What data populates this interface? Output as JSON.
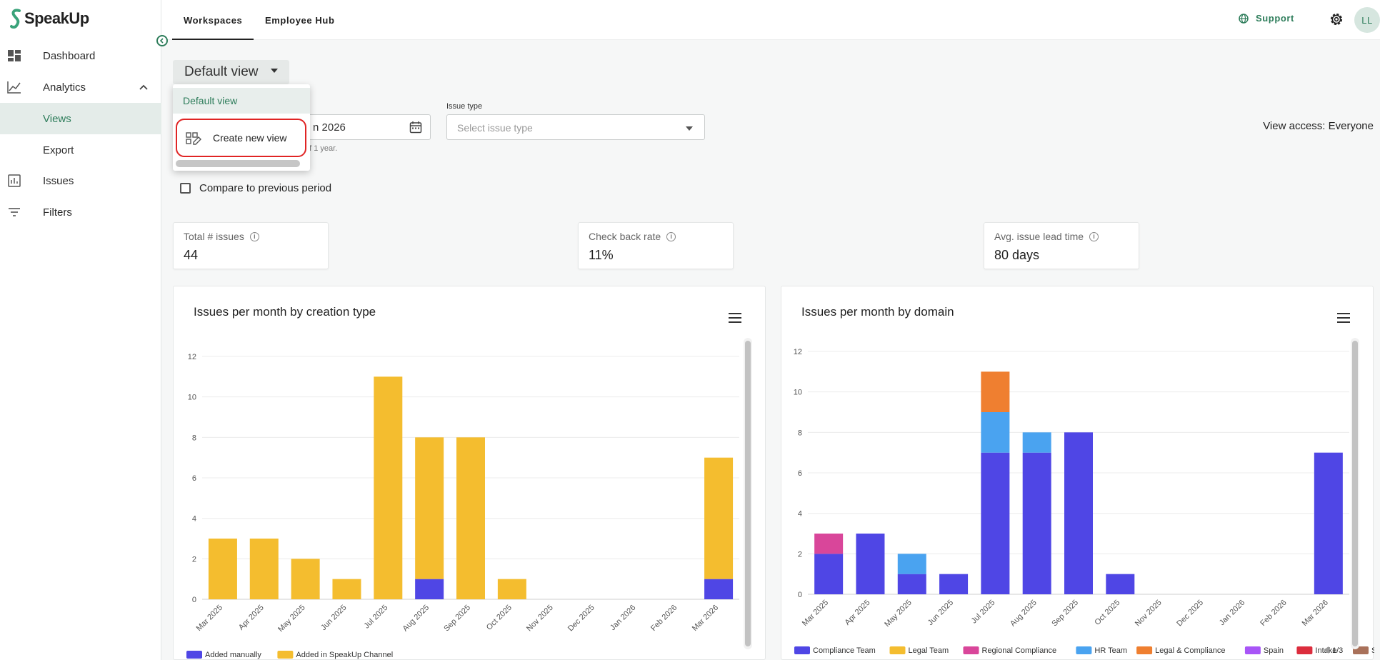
{
  "app": {
    "name": "SpeakUp"
  },
  "sidebar": {
    "items": [
      {
        "label": "Dashboard",
        "icon": "dashboard-icon"
      },
      {
        "label": "Analytics",
        "icon": "analytics-icon",
        "expanded": true
      },
      {
        "label": "Views",
        "active": true
      },
      {
        "label": "Export"
      },
      {
        "label": "Issues",
        "icon": "issues-icon"
      },
      {
        "label": "Filters",
        "icon": "filters-icon"
      }
    ]
  },
  "topbar": {
    "tabs": [
      {
        "label": "Workspaces",
        "active": true
      },
      {
        "label": "Employee Hub"
      }
    ],
    "support_label": "Support",
    "avatar_initials": "LL"
  },
  "view_select": {
    "value": "Default view"
  },
  "dropdown": {
    "options": [
      {
        "label": "Default view",
        "selected": true
      },
      {
        "label": "Create new view",
        "icon": "create-view-icon"
      }
    ]
  },
  "filters": {
    "date_value_partial": "n 2026",
    "date_helper_partial": "of 1 year.",
    "issue_type_label": "Issue type",
    "issue_type_placeholder": "Select issue type",
    "view_access": "View access: Everyone",
    "compare_label": "Compare to previous period"
  },
  "kpis": [
    {
      "title": "Total # issues",
      "value": "44"
    },
    {
      "title": "Check back rate",
      "value": "11%"
    },
    {
      "title": "Avg. issue lead time",
      "value": "80 days"
    }
  ],
  "colors": {
    "brand": "#2e7d5b",
    "blue": "#4f46e5",
    "yellow": "#f4bd2f",
    "pink": "#d9469a",
    "lightblue": "#4aa3f0",
    "orange": "#ef7f30",
    "purple": "#a855f7",
    "red": "#dc2d3d",
    "brown": "#a9715a"
  },
  "chart_data": [
    {
      "type": "bar",
      "stacked": true,
      "title": "Issues per month by creation type",
      "categories": [
        "Mar 2025",
        "Apr 2025",
        "May 2025",
        "Jun 2025",
        "Jul 2025",
        "Aug 2025",
        "Sep 2025",
        "Oct 2025",
        "Nov 2025",
        "Dec 2025",
        "Jan 2026",
        "Feb 2026",
        "Mar 2026"
      ],
      "ylim": [
        0,
        12
      ],
      "yticks": [
        0,
        2,
        4,
        6,
        8,
        10,
        12
      ],
      "grid": true,
      "legend_position": "bottom",
      "series": [
        {
          "name": "Added manually",
          "color": "#4f46e5",
          "values": [
            0,
            0,
            0,
            0,
            0,
            1,
            0,
            0,
            0,
            0,
            0,
            0,
            1
          ]
        },
        {
          "name": "Added in SpeakUp Channel",
          "color": "#f4bd2f",
          "values": [
            3,
            3,
            2,
            1,
            11,
            7,
            8,
            1,
            0,
            0,
            0,
            0,
            6
          ]
        }
      ]
    },
    {
      "type": "bar",
      "stacked": true,
      "title": "Issues per month by domain",
      "categories": [
        "Mar 2025",
        "Apr 2025",
        "May 2025",
        "Jun 2025",
        "Jul 2025",
        "Aug 2025",
        "Sep 2025",
        "Oct 2025",
        "Nov 2025",
        "Dec 2025",
        "Jan 2026",
        "Feb 2026",
        "Mar 2026"
      ],
      "ylim": [
        0,
        12
      ],
      "yticks": [
        0,
        2,
        4,
        6,
        8,
        10,
        12
      ],
      "grid": true,
      "legend_position": "bottom",
      "legend_page": "1/3",
      "series": [
        {
          "name": "Compliance Team",
          "color": "#4f46e5",
          "values": [
            2,
            3,
            1,
            1,
            7,
            7,
            8,
            1,
            0,
            0,
            0,
            0,
            7
          ]
        },
        {
          "name": "Legal Team",
          "color": "#f4bd2f",
          "values": [
            0,
            0,
            0,
            0,
            0,
            0,
            0,
            0,
            0,
            0,
            0,
            0,
            0
          ]
        },
        {
          "name": "Regional Compliance",
          "color": "#d9469a",
          "values": [
            1,
            0,
            0,
            0,
            0,
            0,
            0,
            0,
            0,
            0,
            0,
            0,
            0
          ]
        },
        {
          "name": "HR Team",
          "color": "#4aa3f0",
          "values": [
            0,
            0,
            1,
            0,
            2,
            1,
            0,
            0,
            0,
            0,
            0,
            0,
            0
          ]
        },
        {
          "name": "Legal & Compliance",
          "color": "#ef7f30",
          "values": [
            0,
            0,
            0,
            0,
            2,
            0,
            0,
            0,
            0,
            0,
            0,
            0,
            0
          ]
        },
        {
          "name": "Spain",
          "color": "#a855f7",
          "values": [
            0,
            0,
            0,
            0,
            0,
            0,
            0,
            0,
            0,
            0,
            0,
            0,
            0
          ]
        },
        {
          "name": "Intake",
          "color": "#dc2d3d",
          "values": [
            0,
            0,
            0,
            0,
            0,
            0,
            0,
            0,
            0,
            0,
            0,
            0,
            0
          ]
        },
        {
          "name": "S",
          "color": "#a9715a",
          "values": [
            0,
            0,
            0,
            0,
            0,
            0,
            0,
            0,
            0,
            0,
            0,
            0,
            0
          ]
        }
      ]
    }
  ]
}
